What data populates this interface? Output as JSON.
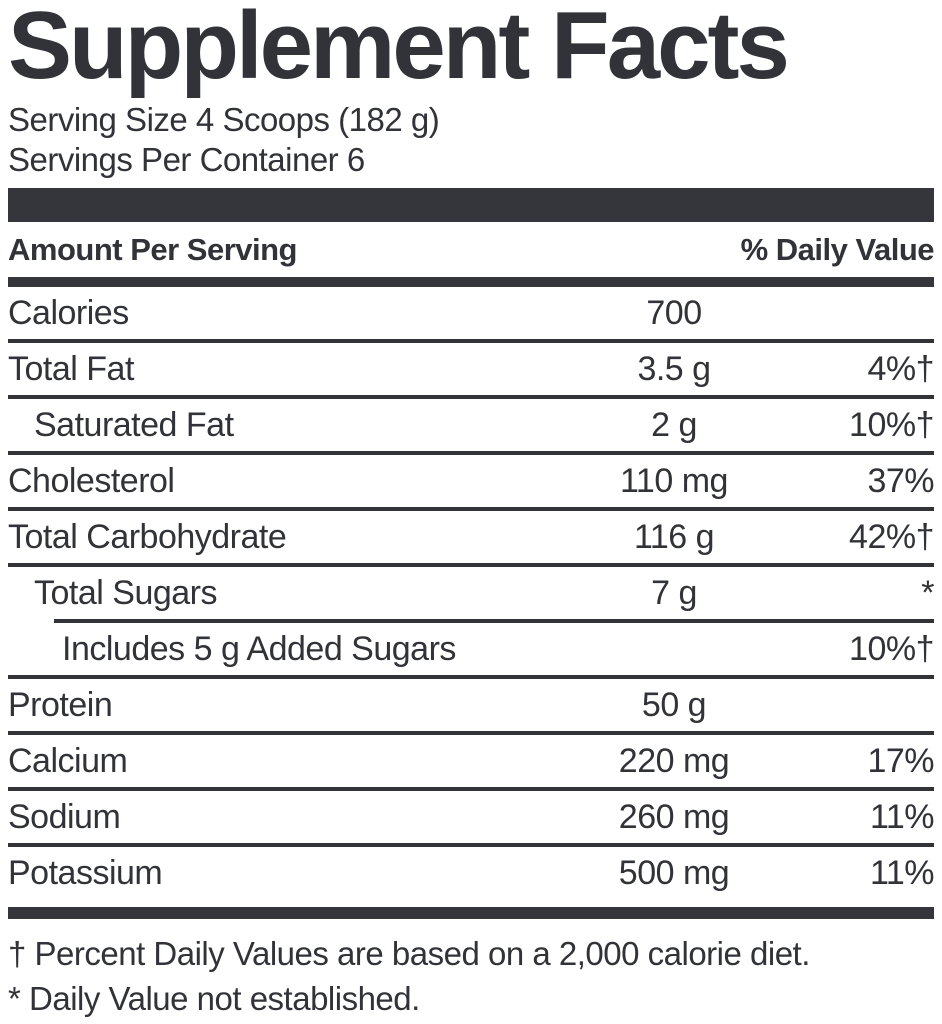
{
  "label": {
    "title": "Supplement Facts",
    "serving_size": "Serving Size 4 Scoops (182 g)",
    "servings_per_container": "Servings Per Container 6",
    "headers": {
      "amount": "Amount Per Serving",
      "daily_value": "% Daily Value"
    },
    "rows": [
      {
        "name": "Calories",
        "amount": "700",
        "dv": "",
        "indent": 0,
        "divider": "full"
      },
      {
        "name": "Total Fat",
        "amount": "3.5 g",
        "dv": "4%†",
        "indent": 0,
        "divider": "full"
      },
      {
        "name": "Saturated Fat",
        "amount": "2 g",
        "dv": "10%†",
        "indent": 1,
        "divider": "full"
      },
      {
        "name": "Cholesterol",
        "amount": "110 mg",
        "dv": "37%",
        "indent": 0,
        "divider": "full"
      },
      {
        "name": "Total Carbohydrate",
        "amount": "116 g",
        "dv": "42%†",
        "indent": 0,
        "divider": "full"
      },
      {
        "name": "Total Sugars",
        "amount": "7 g",
        "dv": "*",
        "indent": 1,
        "divider": "indent"
      },
      {
        "name": "Includes 5 g Added Sugars",
        "amount": "",
        "dv": "10%†",
        "indent": 2,
        "divider": "full"
      },
      {
        "name": "Protein",
        "amount": "50 g",
        "dv": "",
        "indent": 0,
        "divider": "full"
      },
      {
        "name": "Calcium",
        "amount": "220 mg",
        "dv": "17%",
        "indent": 0,
        "divider": "full"
      },
      {
        "name": "Sodium",
        "amount": "260 mg",
        "dv": "11%",
        "indent": 0,
        "divider": "full"
      },
      {
        "name": "Potassium",
        "amount": "500 mg",
        "dv": "11%",
        "indent": 0,
        "divider": "none"
      }
    ],
    "footnotes": [
      "† Percent Daily Values are based on a 2,000 calorie diet.",
      "* Daily Value not established."
    ],
    "colors": {
      "text": "#313339",
      "bar": "#35363c",
      "background": "#ffffff"
    }
  }
}
